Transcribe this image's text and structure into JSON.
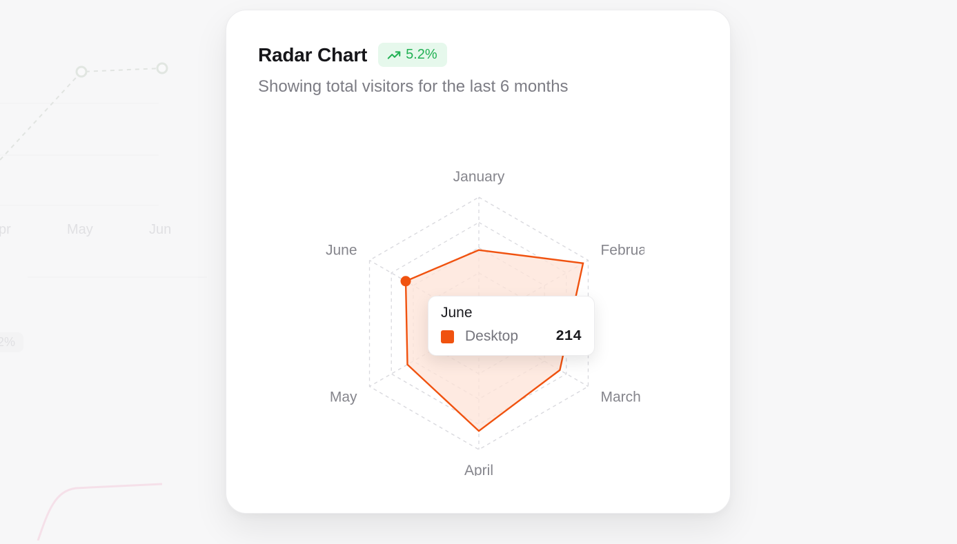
{
  "background": {
    "labels": [
      "pr",
      "May",
      "Jun"
    ],
    "badge": "2%",
    "colors": {
      "line": "#cfd4cf",
      "pink": "#f4b7cf"
    }
  },
  "card": {
    "title": "Radar Chart",
    "badge_text": "5.2%",
    "badge_icon": "trending-up-icon",
    "subtitle": "Showing total visitors for the last 6 months"
  },
  "colors": {
    "series": "#f0520f",
    "series_fill": "#fde3d7",
    "grid": "#d9d9de",
    "badge_bg": "#e6f8ec",
    "badge_fg": "#20b053"
  },
  "chart_data": {
    "type": "radar",
    "categories": [
      "January",
      "February",
      "March",
      "April",
      "May",
      "June"
    ],
    "series": [
      {
        "name": "Desktop",
        "values": [
          186,
          305,
          237,
          273,
          209,
          214
        ]
      }
    ],
    "rmax": 320,
    "grid_levels": 5,
    "grid": true,
    "highlight": "June"
  },
  "tooltip": {
    "title": "June",
    "series_name": "Desktop",
    "value": "214"
  }
}
